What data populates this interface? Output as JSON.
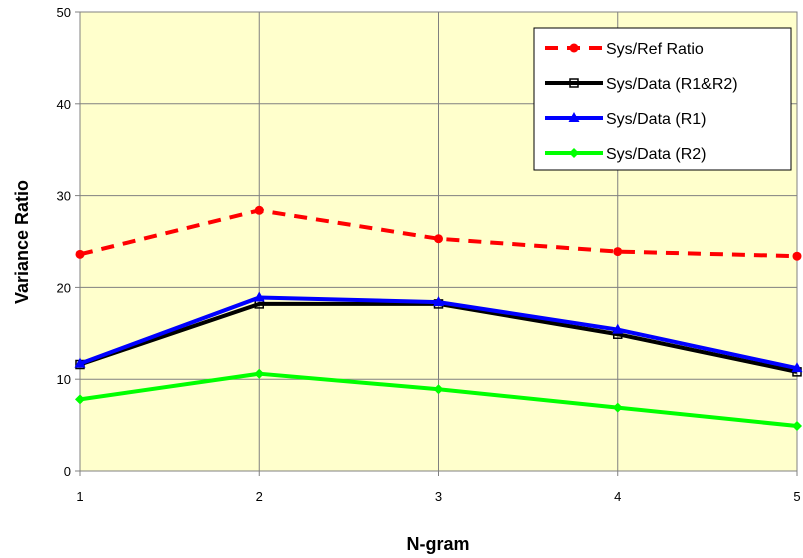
{
  "chart_data": {
    "type": "line",
    "title": "",
    "xlabel": "N-gram",
    "ylabel": "Variance Ratio",
    "x": [
      1,
      2,
      3,
      4,
      5
    ],
    "xlim": [
      1,
      5
    ],
    "ylim": [
      0,
      50
    ],
    "yticks": [
      0,
      10,
      20,
      30,
      40,
      50
    ],
    "xticks": [
      1,
      2,
      3,
      4,
      5
    ],
    "grid": true,
    "plot_background": "#FFFFCC",
    "legend_placement": "top-right",
    "series": [
      {
        "name": "Sys/Ref Ratio",
        "values": [
          23.6,
          28.4,
          25.3,
          23.9,
          23.4
        ],
        "color": "#FF0000",
        "style": "dashed",
        "marker": "circle"
      },
      {
        "name": "Sys/Data (R1&R2)",
        "values": [
          11.6,
          18.2,
          18.2,
          14.9,
          10.8
        ],
        "color": "#000000",
        "style": "solid",
        "marker": "square"
      },
      {
        "name": "Sys/Data (R1)",
        "values": [
          11.7,
          18.9,
          18.4,
          15.4,
          11.2
        ],
        "color": "#0000FF",
        "style": "solid",
        "marker": "triangle"
      },
      {
        "name": "Sys/Data (R2)",
        "values": [
          7.8,
          10.6,
          8.9,
          6.9,
          4.9
        ],
        "color": "#00FF00",
        "style": "solid",
        "marker": "diamond"
      }
    ]
  }
}
